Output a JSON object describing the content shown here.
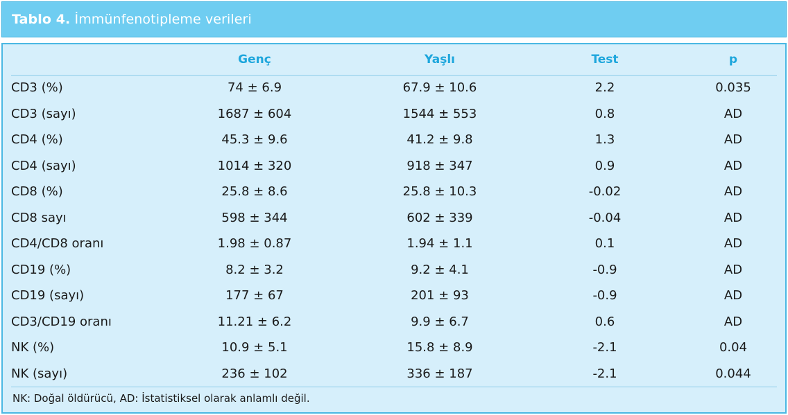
{
  "title": {
    "label": "Tablo 4.",
    "text": "İmmünfenotipleme verileri"
  },
  "table": {
    "columns": [
      "",
      "Genç",
      "Yaşlı",
      "Test",
      "p"
    ],
    "rows": [
      [
        "CD3 (%)",
        "74 ± 6.9",
        "67.9 ± 10.6",
        "2.2",
        "0.035"
      ],
      [
        "CD3 (sayı)",
        "1687 ± 604",
        "1544 ± 553",
        "0.8",
        "AD"
      ],
      [
        "CD4 (%)",
        "45.3 ± 9.6",
        "41.2 ± 9.8",
        "1.3",
        "AD"
      ],
      [
        "CD4 (sayı)",
        "1014 ± 320",
        "918 ± 347",
        "0.9",
        "AD"
      ],
      [
        "CD8 (%)",
        "25.8 ± 8.6",
        "25.8 ± 10.3",
        "-0.02",
        "AD"
      ],
      [
        "CD8 sayı",
        "598 ± 344",
        "602 ± 339",
        "-0.04",
        "AD"
      ],
      [
        "CD4/CD8 oranı",
        "1.98 ± 0.87",
        "1.94 ± 1.1",
        "0.1",
        "AD"
      ],
      [
        "CD19 (%)",
        "8.2 ± 3.2",
        "9.2 ± 4.1",
        "-0.9",
        "AD"
      ],
      [
        "CD19 (sayı)",
        "177 ± 67",
        "201 ± 93",
        "-0.9",
        "AD"
      ],
      [
        "CD3/CD19 oranı",
        "11.21 ± 6.2",
        "9.9 ± 6.7",
        "0.6",
        "AD"
      ],
      [
        "NK (%)",
        "10.9 ± 5.1",
        "15.8 ± 8.9",
        "-2.1",
        "0.04"
      ],
      [
        "NK (sayı)",
        "236 ± 102",
        "336 ± 187",
        "-2.1",
        "0.044"
      ]
    ]
  },
  "footnote": "NK: Doğal öldürücü, AD: İstatistiksel olarak anlamlı değil.",
  "colors": {
    "title_bg": "#6fcdf1",
    "table_bg": "#d6effb",
    "header_text": "#1da6dc",
    "border": "#4ab8e3"
  }
}
